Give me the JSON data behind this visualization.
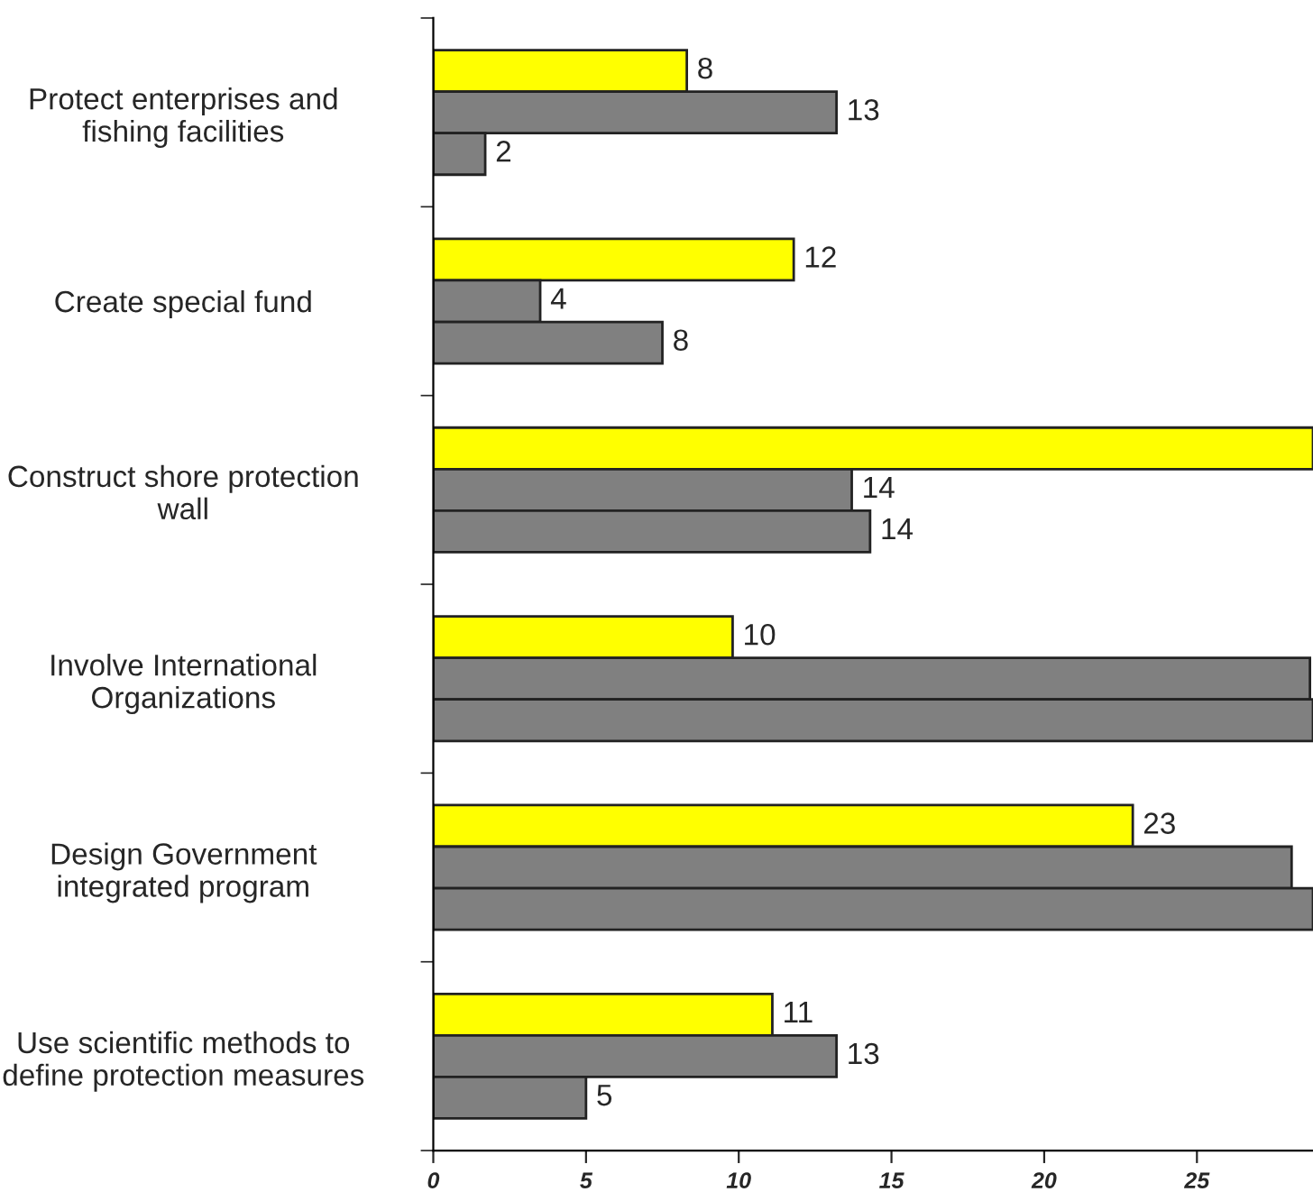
{
  "chart_data": {
    "type": "bar",
    "orientation": "horizontal",
    "categories": [
      "Protect enterprises and\nfishing facilities",
      "Create special fund",
      "Construct shore protection\nwall",
      "Involve International\nOrganizations",
      "Design Government\nintegrated program",
      "Use scientific methods to\ndefine protection measures"
    ],
    "series": [
      {
        "color": "#ffff00",
        "values": [
          8.3,
          11.8,
          28.8,
          9.8,
          22.9,
          11.1
        ],
        "value_labels": [
          "8",
          "12",
          null,
          "10",
          "23",
          "11"
        ]
      },
      {
        "color": "#808080",
        "values": [
          13.2,
          3.5,
          13.7,
          28.7,
          28.1,
          13.2
        ],
        "value_labels": [
          "13",
          "4",
          "14",
          null,
          null,
          "13"
        ]
      },
      {
        "color": "#808080",
        "values": [
          1.7,
          7.5,
          14.3,
          28.8,
          28.8,
          5.0
        ],
        "value_labels": [
          "2",
          "8",
          "14",
          null,
          null,
          "5"
        ]
      }
    ],
    "xlim": [
      0,
      28.8
    ],
    "xticks": [
      0,
      5,
      10,
      15,
      20,
      25
    ],
    "grid": false,
    "legend": false
  }
}
